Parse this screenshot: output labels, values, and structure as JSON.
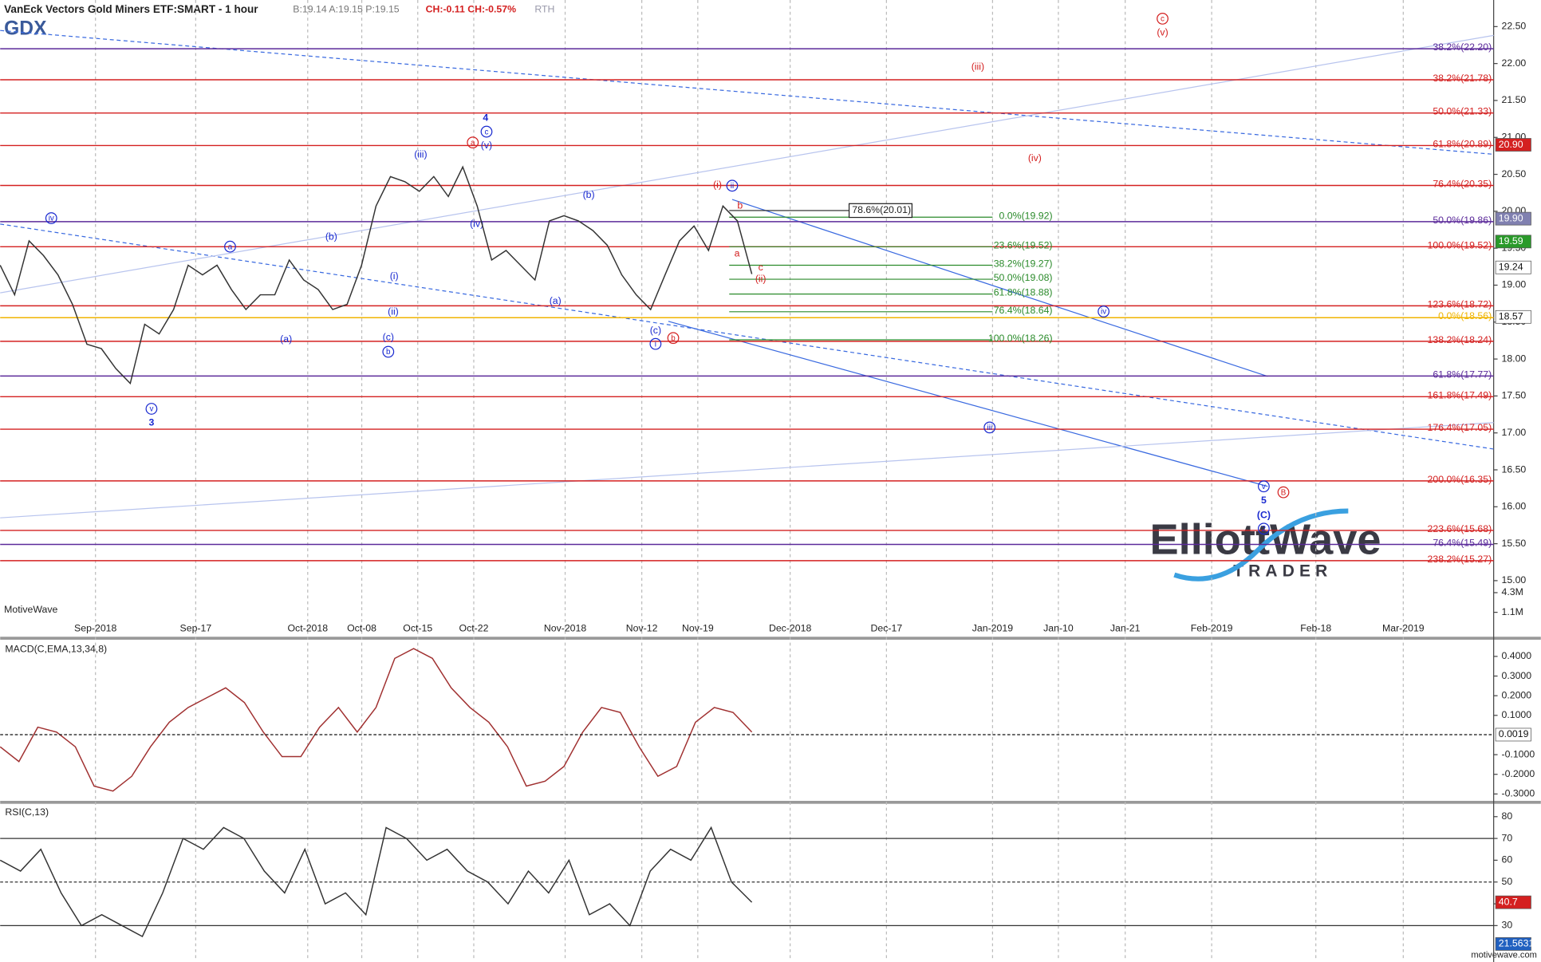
{
  "header": {
    "title": "VanEck Vectors Gold Miners ETF:SMART - 1 hour",
    "quote": "B:19.14 A:19.15 P:19.15",
    "change": "CH:-0.11 CH:-0.57%",
    "session": "RTH",
    "source": "MotiveWave",
    "footer": "motivewave.com"
  },
  "logo": {
    "word": "ElliottWave",
    "sub": "TRADER"
  },
  "chart_data": [
    {
      "type": "line",
      "title": "GDX",
      "color": "#333333",
      "values": [
        19.27,
        18.87,
        19.6,
        19.4,
        19.14,
        18.74,
        18.2,
        18.14,
        17.87,
        17.67,
        18.47,
        18.34,
        18.67,
        19.27,
        19.14,
        19.27,
        18.94,
        18.67,
        18.87,
        18.87,
        19.34,
        19.07,
        18.94,
        18.67,
        18.74,
        19.27,
        20.07,
        20.47,
        20.4,
        20.27,
        20.47,
        20.2,
        20.6,
        20.07,
        19.34,
        19.47,
        19.27,
        19.07,
        19.87,
        19.94,
        19.87,
        19.74,
        19.54,
        19.14,
        18.87,
        18.67,
        19.14,
        19.6,
        19.8,
        19.47,
        20.07,
        19.87,
        19.15
      ],
      "ylim": [
        14.48,
        22.86
      ],
      "yticks": [
        {
          "value": 15,
          "label": "15.00"
        },
        {
          "value": 15.5,
          "label": "15.50"
        },
        {
          "value": 16,
          "label": "16.00"
        },
        {
          "value": 16.5,
          "label": "16.50"
        },
        {
          "value": 17,
          "label": "17.00"
        },
        {
          "value": 17.5,
          "label": "17.50"
        },
        {
          "value": 18,
          "label": "18.00"
        },
        {
          "value": 18.5,
          "label": "18.50"
        },
        {
          "value": 19,
          "label": "19.00"
        },
        {
          "value": 19.5,
          "label": "19.50"
        },
        {
          "value": 20,
          "label": "20.00"
        },
        {
          "value": 20.5,
          "label": "20.50"
        },
        {
          "value": 21,
          "label": "21.00"
        },
        {
          "value": 21.5,
          "label": "21.50"
        },
        {
          "value": 22,
          "label": "22.00"
        },
        {
          "value": 22.5,
          "label": "22.50"
        }
      ],
      "x_labels": [
        "Sep-2018",
        "Sep-17",
        "Oct-2018",
        "Oct-08",
        "Oct-15",
        "Oct-22",
        "Nov-2018",
        "Nov-12",
        "Nov-19",
        "Dec-2018",
        "Dec-17",
        "Jan-2019",
        "Jan-10",
        "Jan-21",
        "Feb-2019",
        "Feb-18",
        "Mar-2019"
      ],
      "levels": [
        {
          "label": "38.2%(22.20)",
          "value": 22.2,
          "color": "#5b2a9a"
        },
        {
          "label": "38.2%(21.78)",
          "value": 21.78,
          "color": "#d42020"
        },
        {
          "label": "50.0%(21.33)",
          "value": 21.33,
          "color": "#d42020"
        },
        {
          "label": "61.8%(20.89)",
          "value": 20.89,
          "color": "#d42020"
        },
        {
          "label": "76.4%(20.35)",
          "value": 20.35,
          "color": "#d42020"
        },
        {
          "label": "50.0%(19.86)",
          "value": 19.86,
          "color": "#5b2a9a"
        },
        {
          "label": "100.0%(19.52)",
          "value": 19.52,
          "color": "#d42020"
        },
        {
          "label": "123.6%(18.72)",
          "value": 18.72,
          "color": "#d42020"
        },
        {
          "label": "0.0%(18.56)",
          "value": 18.56,
          "color": "#f0b400"
        },
        {
          "label": "138.2%(18.24)",
          "value": 18.24,
          "color": "#d42020"
        },
        {
          "label": "61.8%(17.77)",
          "value": 17.77,
          "color": "#5b2a9a"
        },
        {
          "label": "161.8%(17.49)",
          "value": 17.49,
          "color": "#d42020"
        },
        {
          "label": "176.4%(17.05)",
          "value": 17.05,
          "color": "#d42020"
        },
        {
          "label": "200.0%(16.35)",
          "value": 16.35,
          "color": "#d42020"
        },
        {
          "label": "223.6%(15.68)",
          "value": 15.68,
          "color": "#d42020"
        },
        {
          "label": "76.4%(15.49)",
          "value": 15.49,
          "color": "#5b2a9a"
        },
        {
          "label": "238.2%(15.27)",
          "value": 15.27,
          "color": "#d42020"
        }
      ],
      "retracements": [
        {
          "label": "0.0%(19.92)",
          "value": 19.92
        },
        {
          "label": "23.6%(19.52)",
          "value": 19.52
        },
        {
          "label": "38.2%(19.27)",
          "value": 19.27
        },
        {
          "label": "50.0%(19.08)",
          "value": 19.08
        },
        {
          "label": "61.8%(18.88)",
          "value": 18.88
        },
        {
          "label": "76.4%(18.64)",
          "value": 18.64
        },
        {
          "label": "100.0%(18.26)",
          "value": 18.26
        }
      ],
      "retracement_color": "#2a8a2a",
      "box_level": {
        "label": "78.6%(20.01)",
        "value": 20.01
      },
      "price_badges": [
        {
          "value": 20.9,
          "label": "20.90",
          "color": "#d42020"
        },
        {
          "value": 19.9,
          "label": "19.90",
          "color": "#8080b0"
        },
        {
          "value": 19.59,
          "label": "19.59",
          "color": "#2a9a2a"
        },
        {
          "value": 19.24,
          "label": "19.24",
          "color": "#ffffff"
        },
        {
          "value": 18.57,
          "label": "18.57",
          "color": "#ffffff"
        }
      ],
      "volume_ticks": [
        {
          "value": 4300000,
          "label": "4.3M"
        },
        {
          "value": 1100000,
          "label": "1.1M"
        }
      ],
      "wave_labels": [
        "4",
        "iv",
        "a",
        "(b)",
        "(a)",
        "(i)",
        "(ii)",
        "(c)",
        "b",
        "(iii)",
        "(iv)",
        "a",
        "c",
        "(v)",
        "v",
        "3",
        "(b)",
        "(a)",
        "(c)",
        "i",
        "b",
        "(i)",
        "ii",
        "b",
        "a",
        "c",
        "(ii)",
        "iv",
        "iii",
        "v",
        "5",
        "(C)",
        "B",
        "c",
        "(v)",
        "(iii)",
        "(iv)",
        "2"
      ]
    },
    {
      "type": "line",
      "title": "MACD(C,EMA,13,34,8)",
      "color": "#a03030",
      "values": [
        -0.06,
        -0.135,
        0.04,
        0.015,
        -0.06,
        -0.26,
        -0.285,
        -0.21,
        -0.06,
        0.065,
        0.14,
        0.19,
        0.24,
        0.165,
        0.015,
        -0.11,
        -0.11,
        0.04,
        0.14,
        0.015,
        0.14,
        0.39,
        0.44,
        0.39,
        0.24,
        0.14,
        0.065,
        -0.06,
        -0.26,
        -0.235,
        -0.16,
        0.015,
        0.14,
        0.115,
        -0.06,
        -0.21,
        -0.16,
        0.065,
        0.14,
        0.115,
        0.015
      ],
      "ylim": [
        -0.335,
        0.485
      ],
      "yticks": [
        {
          "value": 0.4,
          "label": "0.4000"
        },
        {
          "value": 0.3,
          "label": "0.3000"
        },
        {
          "value": 0.2,
          "label": "0.2000"
        },
        {
          "value": 0.1,
          "label": "0.1000"
        },
        {
          "value": -0.1,
          "label": "-0.1000"
        },
        {
          "value": -0.2,
          "label": "-0.2000"
        },
        {
          "value": -0.3,
          "label": "-0.3000"
        }
      ],
      "badge": {
        "value": 0.0019,
        "label": "0.0019",
        "color": "#ffffff"
      }
    },
    {
      "type": "line",
      "title": "RSI(C,13)",
      "color": "#333333",
      "values": [
        60,
        55,
        65,
        45,
        30,
        35,
        30,
        25,
        45,
        70,
        65,
        75,
        70,
        55,
        45,
        65,
        40,
        45,
        35,
        75,
        70,
        60,
        65,
        55,
        50,
        40,
        55,
        45,
        60,
        35,
        40,
        30,
        55,
        65,
        60,
        75,
        50,
        40.7
      ],
      "ylim": [
        15.1,
        85.9
      ],
      "yticks": [
        30,
        40,
        50,
        60,
        70,
        80
      ],
      "guides": [
        30,
        50,
        70
      ],
      "badges": [
        {
          "value": 40.7,
          "label": "40.7",
          "color": "#d42020"
        },
        {
          "value": 21.5631,
          "label": "21.5631",
          "color": "#2060c0"
        }
      ]
    }
  ]
}
